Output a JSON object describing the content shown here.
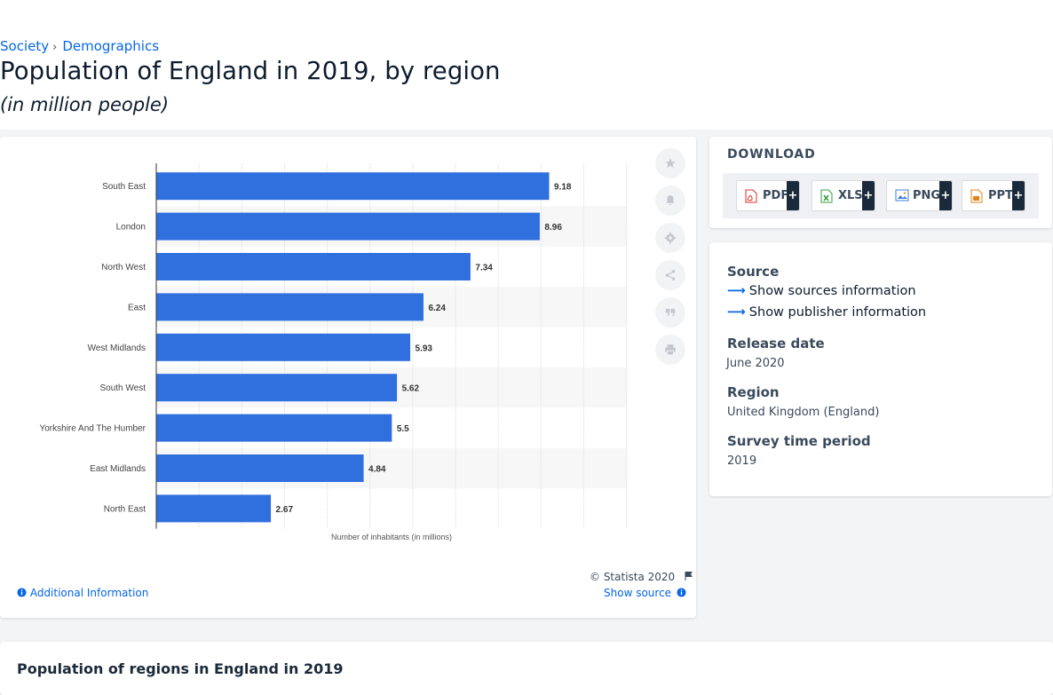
{
  "breadcrumb": {
    "items": [
      "Society",
      "Demographics"
    ],
    "separator": "›"
  },
  "title": "Population of England in 2019, by region",
  "subtitle": "(in million people)",
  "chart_data": {
    "type": "bar",
    "orientation": "horizontal",
    "categories": [
      "South East",
      "London",
      "North West",
      "East",
      "West Midlands",
      "South West",
      "Yorkshire And The Humber",
      "East Midlands",
      "North East"
    ],
    "values": [
      9.18,
      8.96,
      7.34,
      6.24,
      5.93,
      5.62,
      5.5,
      4.84,
      2.67
    ],
    "value_labels": [
      "9.18",
      "8.96",
      "7.34",
      "6.24",
      "5.93",
      "5.62",
      "5.5",
      "4.84",
      "2.67"
    ],
    "xlabel": "Number of inhabitants (in millions)",
    "xlim": [
      0,
      11
    ],
    "grid": true,
    "bar_color": "#2f6fde"
  },
  "tools": [
    "star-icon",
    "bell-icon",
    "gear-icon",
    "share-icon",
    "quote-icon",
    "print-icon"
  ],
  "download": {
    "title": "DOWNLOAD",
    "buttons": [
      {
        "label": "PDF",
        "icon": "pdf-file-icon",
        "color": "#d93025"
      },
      {
        "label": "XLS",
        "icon": "xls-file-icon",
        "color": "#2e9d3c"
      },
      {
        "label": "PNG",
        "icon": "png-file-icon",
        "color": "#3b7dd8"
      },
      {
        "label": "PPT",
        "icon": "ppt-file-icon",
        "color": "#e8811a"
      }
    ],
    "plus": "+"
  },
  "meta": {
    "source_heading": "Source",
    "show_sources": "Show sources information",
    "show_publisher": "Show publisher information",
    "release_heading": "Release date",
    "release_value": "June 2020",
    "region_heading": "Region",
    "region_value": "United Kingdom (England)",
    "survey_heading": "Survey time period",
    "survey_value": "2019"
  },
  "footer": {
    "copyright": "© Statista 2020",
    "additional_info": "Additional Information",
    "show_source": "Show source"
  },
  "bottom": {
    "title": "Population of regions in England in 2019"
  }
}
